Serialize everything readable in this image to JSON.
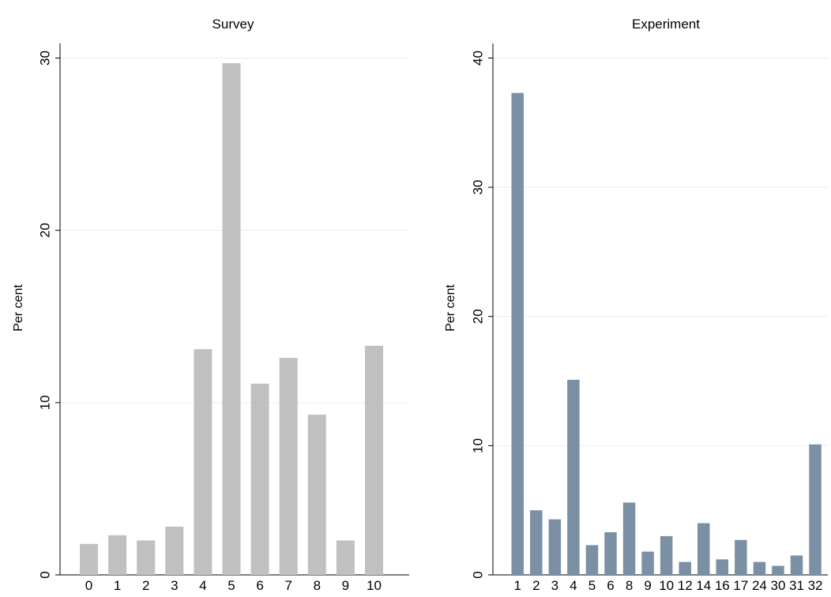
{
  "chart_data": [
    {
      "type": "bar",
      "title": "Survey",
      "xlabel": "",
      "ylabel": "Per cent",
      "ylim": [
        0,
        30
      ],
      "yticks": [
        0,
        10,
        20,
        30
      ],
      "grid": true,
      "bar_color": "#c0c0c0",
      "categories": [
        "0",
        "1",
        "2",
        "3",
        "4",
        "5",
        "6",
        "7",
        "8",
        "9",
        "10"
      ],
      "values": [
        1.8,
        2.3,
        2.0,
        2.8,
        13.1,
        29.7,
        11.1,
        12.6,
        9.3,
        2.0,
        13.3
      ]
    },
    {
      "type": "bar",
      "title": "Experiment",
      "xlabel": "",
      "ylabel": "Per cent",
      "ylim": [
        0,
        40
      ],
      "yticks": [
        0,
        10,
        20,
        30,
        40
      ],
      "grid": true,
      "bar_color": "#7b8fa5",
      "categories": [
        "1",
        "2",
        "3",
        "4",
        "5",
        "6",
        "8",
        "9",
        "10",
        "12",
        "14",
        "16",
        "17",
        "24",
        "30",
        "31",
        "32"
      ],
      "values": [
        37.3,
        5.0,
        4.3,
        15.1,
        2.3,
        3.3,
        5.6,
        1.8,
        3.0,
        1.0,
        4.0,
        1.2,
        2.7,
        1.0,
        0.7,
        1.5,
        10.1
      ]
    }
  ]
}
